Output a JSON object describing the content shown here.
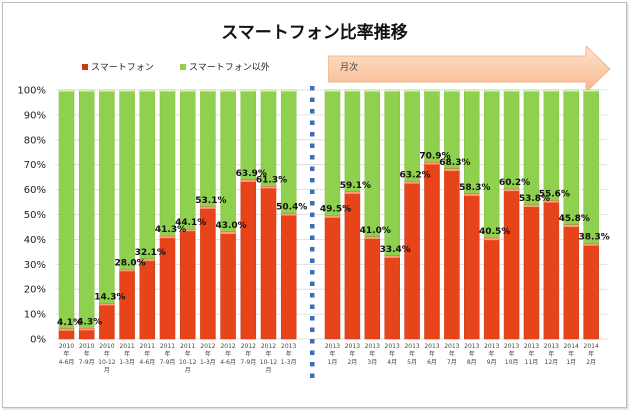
{
  "chart_data": {
    "type": "bar",
    "stacked": true,
    "title": "スマートフォン比率推移",
    "xlabel": "",
    "ylabel": "",
    "ylim": [
      0,
      100
    ],
    "yticks": [
      "0%",
      "10%",
      "20%",
      "30%",
      "40%",
      "50%",
      "60%",
      "70%",
      "80%",
      "90%",
      "100%"
    ],
    "grid": true,
    "legend_position": "top-left",
    "annotation": "月次",
    "categories": [
      [
        "2010",
        "年",
        "4-6月"
      ],
      [
        "2010",
        "年",
        "7-9月"
      ],
      [
        "2010",
        "年",
        "10-12",
        "月"
      ],
      [
        "2011",
        "年",
        "1-3月"
      ],
      [
        "2011",
        "年",
        "4-6月"
      ],
      [
        "2011",
        "年",
        "7-9月"
      ],
      [
        "2011",
        "年",
        "10-12",
        "月"
      ],
      [
        "2012",
        "年",
        "1-3月"
      ],
      [
        "2012",
        "年",
        "4-6月"
      ],
      [
        "2012",
        "年",
        "7-9月"
      ],
      [
        "2012",
        "年",
        "10-12",
        "月"
      ],
      [
        "2013",
        "年",
        "1-3月"
      ],
      [
        "2013",
        "年",
        "1月"
      ],
      [
        "2013",
        "年",
        "2月"
      ],
      [
        "2013",
        "年",
        "3月"
      ],
      [
        "2013",
        "年",
        "4月"
      ],
      [
        "2013",
        "年",
        "5月"
      ],
      [
        "2013",
        "年",
        "6月"
      ],
      [
        "2013",
        "年",
        "7月"
      ],
      [
        "2013",
        "年",
        "8月"
      ],
      [
        "2013",
        "年",
        "9月"
      ],
      [
        "2013",
        "年",
        "10月"
      ],
      [
        "2013",
        "年",
        "11月"
      ],
      [
        "2013",
        "年",
        "12月"
      ],
      [
        "2014",
        "年",
        "1月"
      ],
      [
        "2014",
        "年",
        "2月"
      ]
    ],
    "groups": [
      {
        "name": "quarterly",
        "count": 12
      },
      {
        "name": "monthly",
        "count": 14
      }
    ],
    "series": [
      {
        "name": "スマートフォン",
        "color": "#e8441a",
        "values": [
          4.1,
          4.3,
          14.3,
          28.0,
          32.1,
          41.3,
          44.1,
          53.1,
          43.0,
          63.9,
          61.3,
          50.4,
          49.5,
          59.1,
          41.0,
          33.4,
          63.2,
          70.9,
          68.3,
          58.3,
          40.5,
          60.2,
          53.8,
          55.6,
          45.8,
          38.3
        ],
        "labels": [
          "4.1%",
          "4.3%",
          "14.3%",
          "28.0%",
          "32.1%",
          "41.3%",
          "44.1%",
          "53.1%",
          "43.0%",
          "63.9%",
          "61.3%",
          "50.4%",
          "49.5%",
          "59.1%",
          "41.0%",
          "33.4%",
          "63.2%",
          "70.9%",
          "68.3%",
          "58.3%",
          "40.5%",
          "60.2%",
          "53.8%",
          "55.6%",
          "45.8%",
          "38.3%"
        ]
      },
      {
        "name": "スマートフォン以外",
        "color": "#8fd14f",
        "values": [
          95.9,
          95.7,
          85.7,
          72.0,
          67.9,
          58.7,
          55.9,
          46.9,
          57.0,
          36.1,
          38.7,
          49.6,
          50.5,
          40.9,
          59.0,
          66.6,
          36.8,
          29.1,
          31.7,
          41.7,
          59.5,
          39.8,
          46.2,
          44.4,
          54.2,
          61.7
        ]
      }
    ],
    "divider_color": "#3a6fb5",
    "arrow_color": "#fbc9a6"
  }
}
